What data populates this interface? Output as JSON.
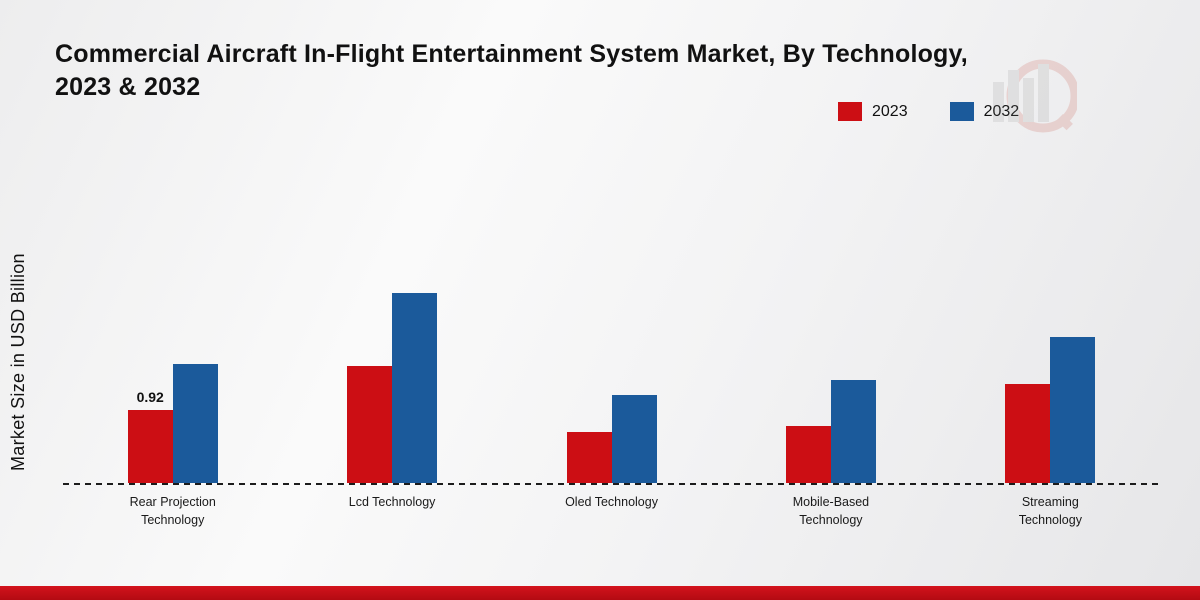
{
  "title_lines": [
    "Commercial Aircraft In-Flight Entertainment System Market, By Technology,",
    "2023 & 2032"
  ],
  "ylabel": "Market Size in USD Billion",
  "legend": [
    {
      "label": "2023",
      "color": "#cc0e14"
    },
    {
      "label": "2032",
      "color": "#1b5a9b"
    }
  ],
  "chart_data": {
    "type": "bar",
    "title": "Commercial Aircraft In-Flight Entertainment System Market, By Technology, 2023 & 2032",
    "ylabel": "Market Size in USD Billion",
    "xlabel": "",
    "categories": [
      "Rear Projection Technology",
      "Lcd Technology",
      "Oled Technology",
      "Mobile-Based Technology",
      "Streaming Technology"
    ],
    "series": [
      {
        "name": "2023",
        "color": "#cc0e14",
        "values": [
          0.92,
          1.48,
          0.65,
          0.72,
          1.25
        ]
      },
      {
        "name": "2032",
        "color": "#1b5a9b",
        "values": [
          1.5,
          2.4,
          1.12,
          1.3,
          1.85
        ]
      }
    ],
    "data_labels": [
      {
        "series": "2023",
        "category_index": 0,
        "text": "0.92"
      }
    ],
    "ylim": [
      0,
      3
    ],
    "grid": false,
    "legend_position": "top-right",
    "baseline_style": "dashed"
  }
}
